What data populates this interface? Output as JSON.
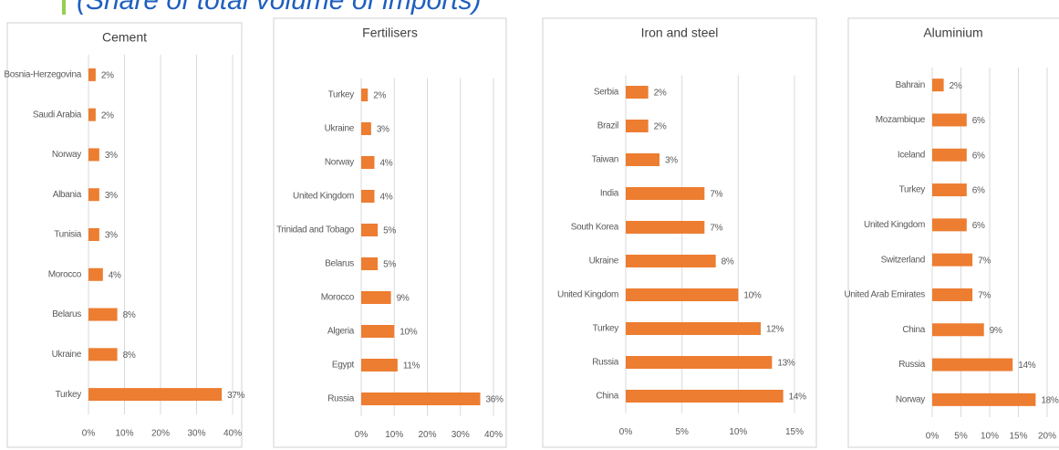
{
  "header": {
    "title": "(Share of total volume of imports)"
  },
  "chart_data": [
    {
      "type": "bar",
      "orientation": "horizontal",
      "title": "Cement",
      "color": "#ed7d31",
      "grid": true,
      "categories": [
        "Bosnia-Herzegovina",
        "Saudi Arabia",
        "Norway",
        "Albania",
        "Tunisia",
        "Morocco",
        "Belarus",
        "Ukraine",
        "Turkey"
      ],
      "values": [
        2,
        2,
        3,
        3,
        3,
        4,
        8,
        8,
        37
      ],
      "value_labels": [
        "2%",
        "2%",
        "3%",
        "3%",
        "3%",
        "4%",
        "8%",
        "8%",
        "37%"
      ],
      "xlim": [
        0,
        40
      ],
      "xticks": [
        {
          "value": 0,
          "label": "0%"
        },
        {
          "value": 10,
          "label": "10%"
        },
        {
          "value": 20,
          "label": "20%"
        },
        {
          "value": 30,
          "label": "30%"
        },
        {
          "value": 40,
          "label": "40%"
        }
      ]
    },
    {
      "type": "bar",
      "orientation": "horizontal",
      "title": "Fertilisers",
      "color": "#ed7d31",
      "grid": true,
      "categories": [
        "Turkey",
        "Ukraine",
        "Norway",
        "United Kingdom",
        "Trinidad and Tobago",
        "Belarus",
        "Morocco",
        "Algeria",
        "Egypt",
        "Russia"
      ],
      "values": [
        2,
        3,
        4,
        4,
        5,
        5,
        9,
        10,
        11,
        36
      ],
      "value_labels": [
        "2%",
        "3%",
        "4%",
        "4%",
        "5%",
        "5%",
        "9%",
        "10%",
        "11%",
        "36%"
      ],
      "xlim": [
        0,
        40
      ],
      "xticks": [
        {
          "value": 0,
          "label": "0%"
        },
        {
          "value": 10,
          "label": "10%"
        },
        {
          "value": 20,
          "label": "20%"
        },
        {
          "value": 30,
          "label": "30%"
        },
        {
          "value": 40,
          "label": "40%"
        }
      ]
    },
    {
      "type": "bar",
      "orientation": "horizontal",
      "title": "Iron and steel",
      "color": "#ed7d31",
      "grid": true,
      "categories": [
        "Serbia",
        "Brazil",
        "Taiwan",
        "India",
        "South Korea",
        "Ukraine",
        "United Kingdom",
        "Turkey",
        "Russia",
        "China"
      ],
      "values": [
        2,
        2,
        3,
        7,
        7,
        8,
        10,
        12,
        13,
        14
      ],
      "value_labels": [
        "2%",
        "2%",
        "3%",
        "7%",
        "7%",
        "8%",
        "10%",
        "12%",
        "13%",
        "14%"
      ],
      "xlim": [
        0,
        15
      ],
      "xticks": [
        {
          "value": 0,
          "label": "0%"
        },
        {
          "value": 5,
          "label": "5%"
        },
        {
          "value": 10,
          "label": "10%"
        },
        {
          "value": 15,
          "label": "15%"
        }
      ]
    },
    {
      "type": "bar",
      "orientation": "horizontal",
      "title": "Aluminium",
      "color": "#ed7d31",
      "grid": true,
      "categories": [
        "Bahrain",
        "Mozambique",
        "Iceland",
        "Turkey",
        "United Kingdom",
        "Switzerland",
        "United Arab Emirates",
        "China",
        "Russia",
        "Norway"
      ],
      "values": [
        2,
        6,
        6,
        6,
        6,
        7,
        7,
        9,
        14,
        18
      ],
      "value_labels": [
        "2%",
        "6%",
        "6%",
        "6%",
        "6%",
        "7%",
        "7%",
        "9%",
        "14%",
        "18%"
      ],
      "xlim": [
        0,
        20
      ],
      "xticks": [
        {
          "value": 0,
          "label": "0%"
        },
        {
          "value": 5,
          "label": "5%"
        },
        {
          "value": 10,
          "label": "10%"
        },
        {
          "value": 15,
          "label": "15%"
        },
        {
          "value": 20,
          "label": "20%"
        }
      ]
    }
  ]
}
